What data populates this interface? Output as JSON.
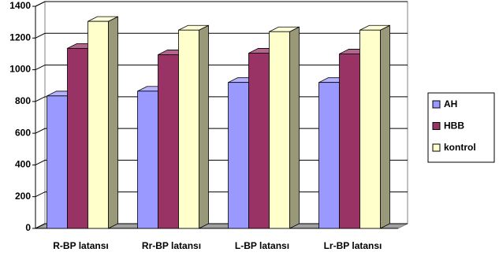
{
  "chart_data": {
    "type": "bar3d",
    "categories": [
      "R-BP latansı",
      "Rr-BP latansı",
      "L-BP latansı",
      "Lr-BP latansı"
    ],
    "series": [
      {
        "name": "AH",
        "color": "#9999ff",
        "values": [
          835,
          865,
          920,
          920
        ]
      },
      {
        "name": "HBB",
        "color": "#993366",
        "values": [
          1135,
          1095,
          1105,
          1100
        ]
      },
      {
        "name": "kontrol",
        "color": "#ffffcc",
        "values": [
          1305,
          1250,
          1240,
          1250
        ]
      }
    ],
    "ylim": [
      0,
      1400
    ],
    "yticks": [
      0,
      200,
      400,
      600,
      800,
      1000,
      1200,
      1400
    ],
    "grid": true,
    "legend": "right"
  }
}
